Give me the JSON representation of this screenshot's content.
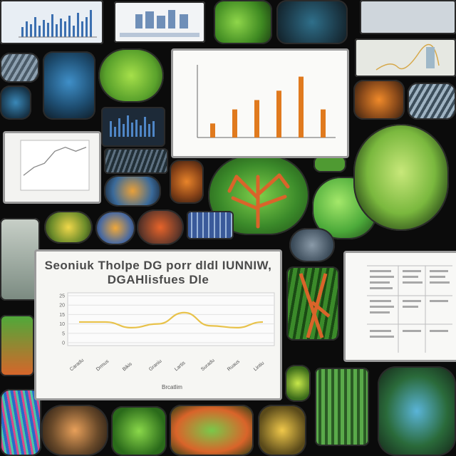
{
  "main_chart": {
    "title_line1": "Seoniuk Tholpe DG porr dldl IUNNIW,",
    "title_line2": "DGAHlisfues Dle",
    "y_ticks": [
      "25",
      "20",
      "15",
      "10",
      "5",
      "0"
    ],
    "x_labels": [
      "Caradu",
      "Drmus",
      "Bikis",
      "Graniu",
      "Lartis",
      "Suradu",
      "Ruaus",
      "Lintiu"
    ],
    "xlabel": "Brcatlim"
  },
  "chart_data": [
    {
      "type": "line",
      "title": "Seoniuk Tholpe DG porr dldl IUNNIW, DGAHlisfues Dle",
      "xlabel": "Brcatlim",
      "ylabel": "",
      "categories": [
        "Caradu",
        "Drmus",
        "Bikis",
        "Graniu",
        "Lartis",
        "Suradu",
        "Ruaus",
        "Lintiu"
      ],
      "values": [
        11,
        11,
        8,
        10,
        16,
        9,
        8,
        11
      ],
      "ylim": [
        0,
        25
      ],
      "grid": true,
      "line_color": "#e8c24a"
    },
    {
      "type": "bar",
      "categories": [
        "",
        "",
        "",
        "",
        "",
        ""
      ],
      "values": [
        3,
        6,
        8,
        10,
        13,
        6
      ],
      "bar_color": "#e07a1e"
    },
    {
      "type": "line",
      "values": [
        3,
        5,
        6,
        9,
        10,
        9,
        10
      ]
    }
  ],
  "colors": {
    "background": "#0b0b0b",
    "panel": "#f3f3f1",
    "leaf_green": "#5fae3a",
    "vein_orange": "#d9642a",
    "accent_blue": "#3b7fc4"
  },
  "icons": [
    "leaf-tile",
    "cell-tile",
    "bar-chart-tile",
    "line-chart-tile",
    "data-table-tile"
  ]
}
